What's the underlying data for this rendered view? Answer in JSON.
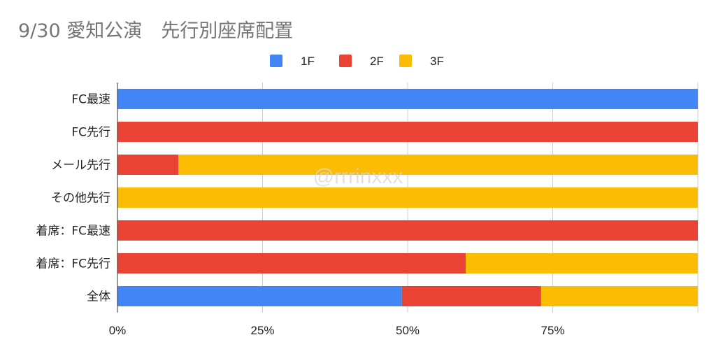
{
  "chart_data": {
    "type": "bar",
    "orientation": "horizontal",
    "stacked": "percent",
    "title": "9/30 愛知公演　先行別座席配置",
    "categories": [
      "FC最速",
      "FC先行",
      "メール先行",
      "その他先行",
      "着席：FC最速",
      "着席：FC先行",
      "全体"
    ],
    "series": [
      {
        "name": "1F",
        "color": "#4285F4",
        "values": [
          100,
          0,
          0,
          0,
          0,
          0,
          49
        ]
      },
      {
        "name": "2F",
        "color": "#EA4335",
        "values": [
          0,
          100,
          10.5,
          0,
          100,
          60,
          24
        ]
      },
      {
        "name": "3F",
        "color": "#FBBC04",
        "values": [
          0,
          0,
          89.5,
          100,
          0,
          40,
          27
        ]
      }
    ],
    "xlim": [
      0,
      100
    ],
    "ticks": [
      0,
      25,
      50,
      75,
      100
    ],
    "tick_labels": [
      "0%",
      "25%",
      "50%",
      "75%",
      ""
    ],
    "grid": true,
    "legend_position": "top",
    "watermark": "@rrrinxxx"
  }
}
